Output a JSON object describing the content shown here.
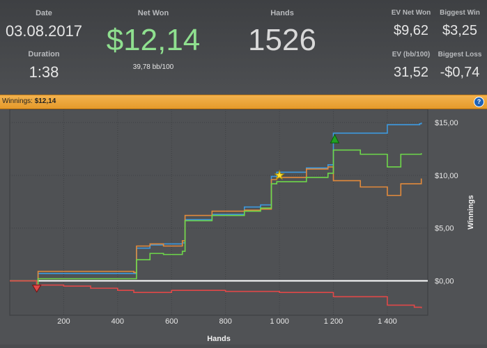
{
  "stats": {
    "date_label": "Date",
    "date": "03.08.2017",
    "duration_label": "Duration",
    "duration": "1:38",
    "net_won_label": "Net Won",
    "net_won": "$12,14",
    "bb_per_100": "39,78 bb/100",
    "hands_label": "Hands",
    "hands": "1526",
    "ev_net_won_label": "EV Net Won",
    "ev_net_won": "$9,62",
    "biggest_win_label": "Biggest Win",
    "biggest_win": "$3,25",
    "ev_bb_label": "EV (bb/100)",
    "ev_bb": "31,52",
    "biggest_loss_label": "Biggest Loss",
    "biggest_loss": "-$0,74"
  },
  "bar": {
    "label": "Winnings:",
    "value": "$12,14",
    "help": "?"
  },
  "colors": {
    "net_won": "#8fe08f",
    "bar": "#f0a83a",
    "blue": "#3d9ae0",
    "orange": "#e38a3b",
    "green": "#6ed84a",
    "red": "#e04848"
  },
  "chart_data": {
    "type": "line",
    "xlabel": "Hands",
    "ylabel": "Winnings",
    "xlim": [
      0,
      1550
    ],
    "ylim": [
      -3,
      16
    ],
    "x_ticks": [
      200,
      400,
      600,
      800,
      1000,
      1200,
      1400
    ],
    "x_tick_labels": [
      "200",
      "400",
      "600",
      "800",
      "1 000",
      "1 200",
      "1 400"
    ],
    "y_ticks": [
      0,
      5,
      10,
      15
    ],
    "y_tick_labels": [
      "$0,00",
      "$5,00",
      "$10,00",
      "$15,00"
    ],
    "grid": true,
    "series": [
      {
        "color": "blue",
        "x": [
          0,
          100,
          105,
          460,
          470,
          520,
          570,
          640,
          650,
          750,
          870,
          930,
          970,
          990,
          1100,
          1180,
          1200,
          1370,
          1400,
          1520,
          1526
        ],
        "y": [
          0,
          -0.4,
          0.7,
          0.7,
          3.1,
          3.4,
          3.5,
          3.6,
          5.8,
          6.3,
          7.0,
          7.2,
          9.9,
          10.3,
          10.7,
          11.0,
          14.0,
          14.0,
          14.8,
          14.9,
          15.0
        ]
      },
      {
        "color": "orange",
        "x": [
          0,
          100,
          105,
          460,
          470,
          520,
          570,
          640,
          650,
          750,
          870,
          930,
          970,
          990,
          1100,
          1180,
          1200,
          1300,
          1400,
          1450,
          1526
        ],
        "y": [
          0,
          -0.4,
          0.9,
          0.8,
          3.3,
          3.5,
          3.3,
          3.8,
          6.2,
          6.6,
          6.7,
          6.8,
          9.6,
          9.8,
          10.6,
          10.8,
          9.5,
          8.9,
          8.1,
          9.2,
          9.7
        ]
      },
      {
        "color": "green",
        "x": [
          0,
          100,
          105,
          460,
          470,
          520,
          570,
          640,
          650,
          750,
          870,
          930,
          970,
          990,
          1100,
          1180,
          1200,
          1300,
          1400,
          1450,
          1526
        ],
        "y": [
          0,
          -0.5,
          0.2,
          0.2,
          2.0,
          2.6,
          2.5,
          2.8,
          5.7,
          6.2,
          6.6,
          6.9,
          9.2,
          9.4,
          9.8,
          10.2,
          12.4,
          12.0,
          10.8,
          12.0,
          12.1
        ]
      },
      {
        "color": "red",
        "x": [
          0,
          100,
          200,
          300,
          400,
          460,
          600,
          800,
          1000,
          1200,
          1400,
          1500,
          1526
        ],
        "y": [
          0,
          -0.4,
          -0.5,
          -0.7,
          -0.9,
          -1.1,
          -0.9,
          -1.0,
          -1.1,
          -1.5,
          -2.3,
          -2.5,
          -2.6
        ]
      }
    ],
    "markers": [
      {
        "shape": "triangle-down",
        "color": "red",
        "x": 100,
        "y": -0.6
      },
      {
        "shape": "star",
        "color": "yellow",
        "x": 1000,
        "y": 10.0
      },
      {
        "shape": "triangle-up",
        "color": "green",
        "x": 1205,
        "y": 13.4
      }
    ]
  }
}
